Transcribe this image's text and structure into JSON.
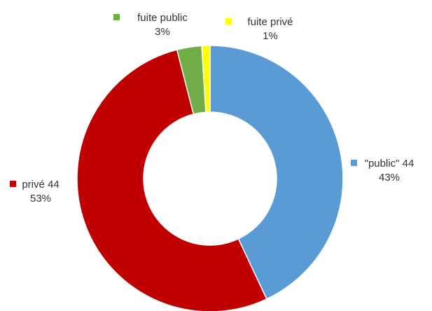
{
  "chart_data": {
    "type": "pie",
    "donut": true,
    "title": "",
    "slices": [
      {
        "label": "\"public\" 44",
        "pct_label": "43%",
        "value": 43,
        "color": "#5B9BD5"
      },
      {
        "label": "privé 44",
        "pct_label": "53%",
        "value": 53,
        "color": "#C00000"
      },
      {
        "label": "fuite public",
        "pct_label": "3%",
        "value": 3,
        "color": "#70AD47"
      },
      {
        "label": "fuite privé",
        "pct_label": "1%",
        "value": 1,
        "color": "#FFFF00"
      }
    ],
    "legend": "none"
  }
}
